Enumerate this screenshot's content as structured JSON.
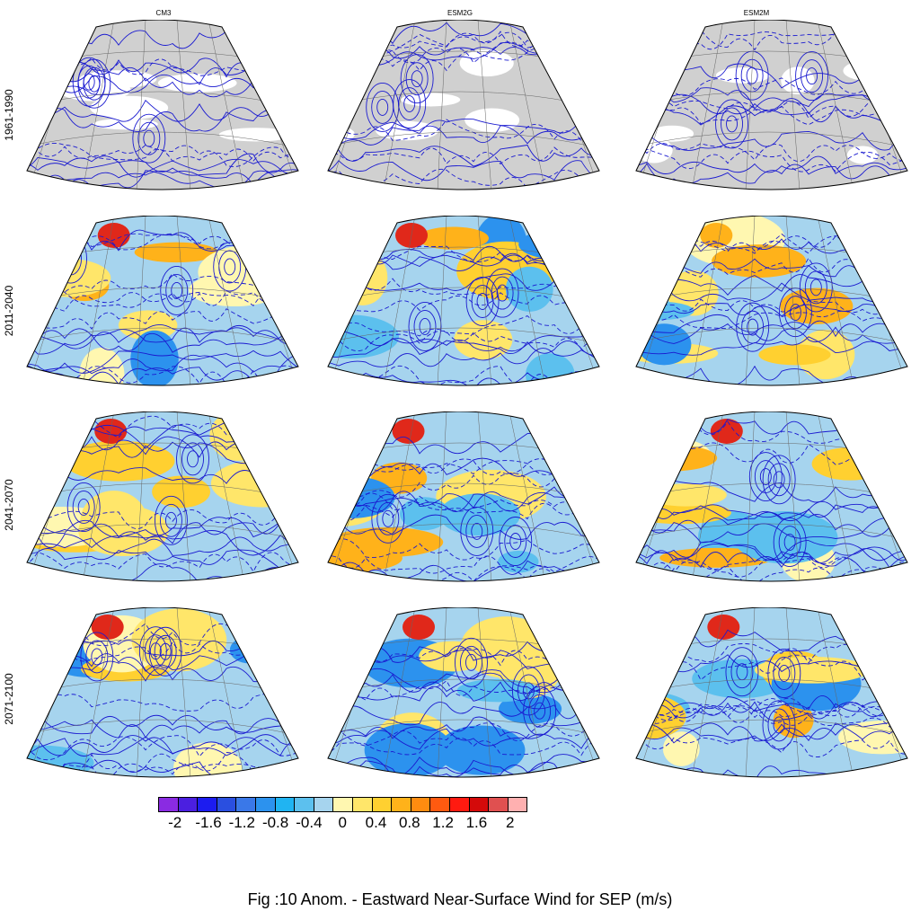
{
  "columns": [
    "CM3",
    "ESM2G",
    "ESM2M"
  ],
  "rows": [
    "1961-1990",
    "2011-2040",
    "2041-2070",
    "2071-2100"
  ],
  "colorbar": {
    "colors": [
      "#8a2be2",
      "#4b1fe0",
      "#1c1cf0",
      "#2a4fe0",
      "#3a78e8",
      "#2c92ee",
      "#20b4f2",
      "#5cc0ee",
      "#a6d4ee",
      "#fff7b0",
      "#ffe66a",
      "#ffd030",
      "#ffb21a",
      "#ff8c10",
      "#ff5a10",
      "#ff1a10",
      "#d40a0a",
      "#e05050",
      "#ffb0b0"
    ],
    "labels": [
      "-2",
      "-1.6",
      "-1.2",
      "-0.8",
      "-0.4",
      "0",
      "0.4",
      "0.8",
      "1.2",
      "1.6",
      "2"
    ],
    "range": [
      -2.2,
      2.2
    ]
  },
  "title": "Fig :10  Anom.  - Eastward Near-Surface Wind for SEP (m/s)"
}
